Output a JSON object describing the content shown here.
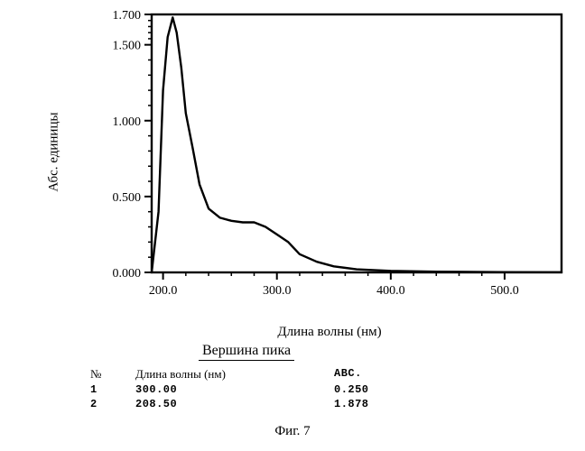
{
  "chart": {
    "type": "line",
    "xlabel": "Длина волны (нм)",
    "ylabel": "Абс. единицы",
    "xlim": [
      190,
      550
    ],
    "ylim": [
      0.0,
      1.7
    ],
    "xticks": [
      200.0,
      300.0,
      400.0,
      500.0
    ],
    "yticks": [
      0.0,
      0.5,
      1.0,
      1.5,
      1.7
    ],
    "xtick_labels": [
      "200.0",
      "300.0",
      "400.0",
      "500.0"
    ],
    "ytick_labels": [
      "0.000",
      "0.500",
      "1.000",
      "1.500",
      "1.700"
    ],
    "axis_color": "#000000",
    "line_color": "#000000",
    "line_width": 2.4,
    "tick_width": 2,
    "axis_width": 2.4,
    "tick_fontsize": 14,
    "label_fontsize": 15,
    "background_color": "#ffffff",
    "minor_tick_count_x": 4,
    "minor_tick_count_y": 4,
    "series": [
      {
        "x": 190,
        "y": 0.0
      },
      {
        "x": 196,
        "y": 0.4
      },
      {
        "x": 200,
        "y": 1.2
      },
      {
        "x": 204,
        "y": 1.55
      },
      {
        "x": 208.5,
        "y": 1.68
      },
      {
        "x": 212,
        "y": 1.58
      },
      {
        "x": 216,
        "y": 1.35
      },
      {
        "x": 220,
        "y": 1.05
      },
      {
        "x": 226,
        "y": 0.82
      },
      {
        "x": 232,
        "y": 0.58
      },
      {
        "x": 240,
        "y": 0.42
      },
      {
        "x": 250,
        "y": 0.36
      },
      {
        "x": 260,
        "y": 0.34
      },
      {
        "x": 270,
        "y": 0.33
      },
      {
        "x": 280,
        "y": 0.33
      },
      {
        "x": 290,
        "y": 0.3
      },
      {
        "x": 300,
        "y": 0.25
      },
      {
        "x": 310,
        "y": 0.2
      },
      {
        "x": 320,
        "y": 0.12
      },
      {
        "x": 335,
        "y": 0.07
      },
      {
        "x": 350,
        "y": 0.04
      },
      {
        "x": 370,
        "y": 0.02
      },
      {
        "x": 400,
        "y": 0.01
      },
      {
        "x": 440,
        "y": 0.005
      },
      {
        "x": 500,
        "y": 0.002
      },
      {
        "x": 550,
        "y": 0.001
      }
    ]
  },
  "peak_section": {
    "title": "Вершина пика",
    "headers": {
      "n": "№",
      "wavelength": "Длина волны  (нм)",
      "abs": "ABC."
    },
    "rows": [
      {
        "n": "1",
        "wavelength": "300.00",
        "abs": "0.250"
      },
      {
        "n": "2",
        "wavelength": "208.50",
        "abs": "1.878"
      }
    ]
  },
  "caption": "Фиг. 7"
}
